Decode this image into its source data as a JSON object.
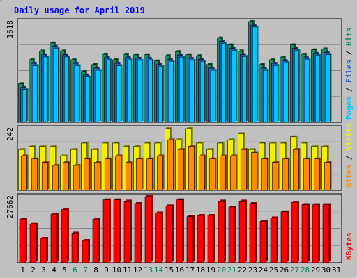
{
  "chart_data": {
    "type": "bar",
    "title": "Daily usage for April 2019",
    "days": [
      "1",
      "2",
      "3",
      "4",
      "5",
      "6",
      "7",
      "8",
      "9",
      "10",
      "11",
      "12",
      "13",
      "14",
      "15",
      "16",
      "17",
      "18",
      "19",
      "20",
      "21",
      "22",
      "23",
      "24",
      "25",
      "26",
      "27",
      "28",
      "29",
      "30",
      "31"
    ],
    "weekend_days": [
      "6",
      "7",
      "13",
      "14",
      "20",
      "21",
      "27",
      "28"
    ],
    "panels": [
      {
        "id": "hits-files-pages",
        "max_label": "1618",
        "ylim": [
          0,
          1618
        ],
        "grid": true,
        "legend": [
          "Pages",
          " / ",
          "Files",
          " / ",
          "Hits"
        ],
        "series": [
          {
            "name": "Hits",
            "color": "#1e8c5a",
            "values": [
              622,
              1005,
              1146,
              1274,
              1146,
              1005,
              816,
              928,
              1094,
              1005,
              1094,
              1085,
              1085,
              985,
              1070,
              1136,
              1085,
              1070,
              928,
              1354,
              1243,
              1146,
              1618,
              928,
              1005,
              1048,
              1243,
              1094,
              1164,
              1178,
              null
            ]
          },
          {
            "name": "Files",
            "color": "#2a60c8",
            "values": [
              560,
              948,
              1085,
              1218,
              1084,
              948,
              760,
              870,
              1037,
              948,
              1037,
              1028,
              1028,
              928,
              1012,
              1079,
              1028,
              1012,
              870,
              1297,
              1186,
              1088,
              1560,
              870,
              948,
              990,
              1186,
              1037,
              1106,
              1121,
              null
            ]
          },
          {
            "name": "Pages",
            "color": "#00c8ff",
            "values": [
              530,
              910,
              1050,
              1190,
              1050,
              910,
              730,
              836,
              1002,
              910,
              1002,
              995,
              995,
              893,
              980,
              1047,
              995,
              980,
              836,
              1262,
              1150,
              1058,
              1530,
              836,
              912,
              957,
              1150,
              1002,
              1072,
              1090,
              null
            ]
          }
        ]
      },
      {
        "id": "visits-sites",
        "max_label": "242",
        "ylim": [
          0,
          242
        ],
        "grid": true,
        "legend": [
          "Sites",
          " / ",
          "Visits"
        ],
        "series": [
          {
            "name": "Visits",
            "color": "#f0f000",
            "values": [
              160,
              173,
              173,
              173,
              135,
              160,
              185,
              160,
              185,
              185,
              173,
              173,
              185,
              185,
              242,
              198,
              242,
              185,
              160,
              185,
              198,
              222,
              160,
              185,
              185,
              185,
              210,
              185,
              173,
              173,
              null
            ]
          },
          {
            "name": "Sites",
            "color": "#ff8a00",
            "values": [
              135,
              123,
              110,
              98,
              110,
              98,
              123,
              110,
              123,
              135,
              110,
              123,
              123,
              135,
              198,
              160,
              173,
              135,
              123,
              135,
              135,
              160,
              148,
              123,
              110,
              123,
              160,
              123,
              123,
              110,
              null
            ]
          }
        ]
      },
      {
        "id": "kbytes",
        "max_label": "27662",
        "ylim": [
          0,
          27662
        ],
        "grid": true,
        "legend": [
          "KBytes"
        ],
        "series": [
          {
            "name": "KBytes",
            "color": "#ff0000",
            "values": [
              18300,
              16100,
              10200,
              20300,
              22300,
              12400,
              9300,
              18300,
              26300,
              26300,
              25800,
              24800,
              27662,
              20800,
              23800,
              26300,
              19300,
              19800,
              19800,
              25800,
              23300,
              25800,
              24800,
              17300,
              18800,
              21300,
              25300,
              24300,
              24300,
              24300,
              null
            ]
          }
        ]
      }
    ]
  },
  "colors": {
    "frame": "#c0c0c0",
    "plot": "#c0c0c0",
    "title": "#0000ff",
    "weekday_label": "#000000",
    "weekend_label": "#00805a",
    "kbytes_label": "#ff0000",
    "pages_label": "#00c8ff",
    "files_label": "#2a60c8",
    "hits_label": "#1e8c5a",
    "sites_label": "#ff8a00",
    "visits_label": "#f0f000"
  }
}
